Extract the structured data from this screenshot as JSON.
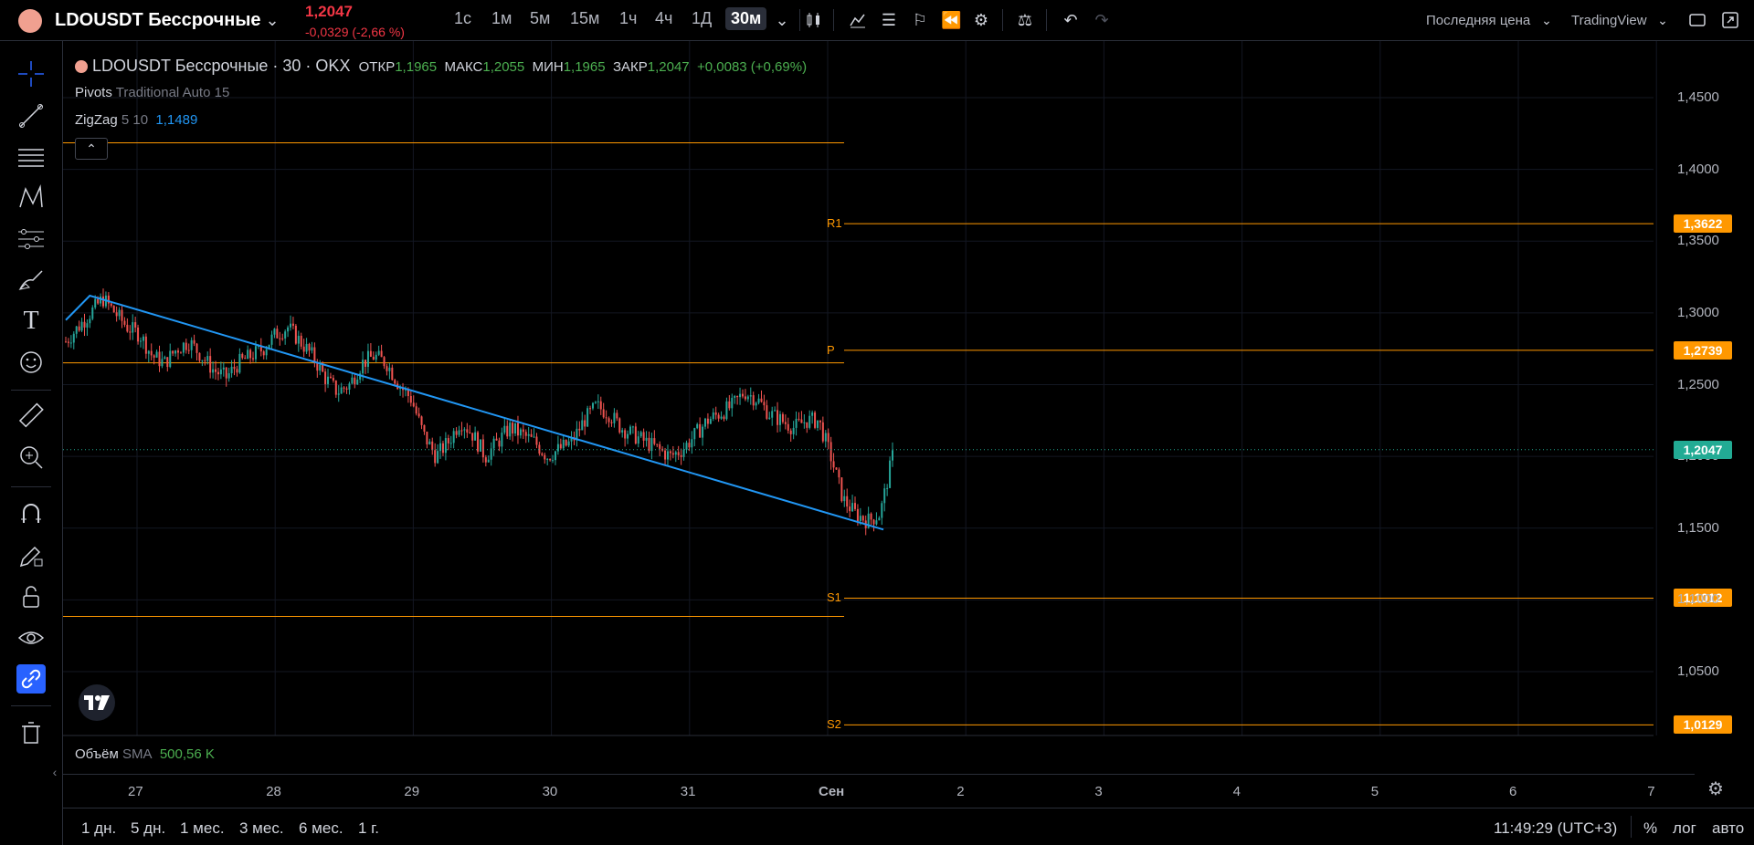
{
  "header": {
    "symbol": "LDOUSDT Бессрочные",
    "price": "1,2047",
    "change": "-0,0329 (-2,66 %)",
    "intervals": [
      "1с",
      "1м",
      "5м",
      "15м",
      "1ч",
      "4ч",
      "1Д",
      "30м"
    ],
    "price_type": "Последняя цена",
    "chart_provider": "TradingView"
  },
  "left_tools": [
    "crosshair-icon",
    "trendline-icon",
    "horizontal-lines-icon",
    "pattern-icon",
    "fib-icon",
    "brush-icon",
    "text-icon",
    "emoji-icon",
    "ruler-icon",
    "zoom-icon",
    "magnet-icon",
    "pencil-lock-icon",
    "lock-icon",
    "eye-icon",
    "link-icon",
    "trash-icon"
  ],
  "legend": {
    "title": "LDOUSDT Бессрочные · 30 · OKX",
    "open_label": "ОТКР",
    "open": "1,1965",
    "high_label": "МАКС",
    "high": "1,2055",
    "low_label": "МИН",
    "low": "1,1965",
    "close_label": "ЗАКР",
    "close": "1,2047",
    "change": "+0,0083 (+0,69%)",
    "pivots_name": "Pivots",
    "pivots_params": "Traditional Auto 15",
    "zigzag_name": "ZigZag",
    "zigzag_params": "5 10",
    "zigzag_value": "1,1489",
    "volume_name": "Объём",
    "volume_ma": "SMA",
    "volume_value": "500,56 K"
  },
  "chart_data": {
    "type": "candlestick",
    "ylim": [
      0.99,
      1.47
    ],
    "yticks": [
      "1,4500",
      "1,4000",
      "1,3500",
      "1,3000",
      "1,2500",
      "1,2000",
      "1,1500",
      "1,1000",
      "1,0500"
    ],
    "ytick_values": [
      1.45,
      1.4,
      1.35,
      1.3,
      1.25,
      1.2,
      1.15,
      1.1,
      1.05
    ],
    "x_labels": [
      "27",
      "28",
      "29",
      "30",
      "31",
      "Сен",
      "2",
      "3",
      "4",
      "5",
      "6",
      "7"
    ],
    "pivot_levels": [
      {
        "name": "R1",
        "value": "1,3622",
        "v": 1.3622
      },
      {
        "name": "P",
        "value": "1,2739",
        "v": 1.2739
      },
      {
        "name": "S1",
        "value": "1,1012",
        "v": 1.1012
      },
      {
        "name": "S2",
        "value": "1,0129",
        "v": 1.0129
      }
    ],
    "prev_period_levels": [
      1.4185,
      1.2652,
      1.0885
    ],
    "last_price": {
      "value": "1,2047",
      "v": 1.2047
    },
    "zigzag": [
      [
        0,
        1.295
      ],
      [
        0.45,
        1.312
      ],
      [
        15.3,
        1.149
      ]
    ],
    "close_path": [
      1.28,
      1.29,
      1.3,
      1.31,
      1.3,
      1.29,
      1.285,
      1.27,
      1.265,
      1.275,
      1.28,
      1.27,
      1.26,
      1.255,
      1.265,
      1.27,
      1.275,
      1.285,
      1.29,
      1.28,
      1.27,
      1.255,
      1.245,
      1.25,
      1.265,
      1.27,
      1.265,
      1.25,
      1.24,
      1.215,
      1.2,
      1.21,
      1.225,
      1.215,
      1.2,
      1.21,
      1.22,
      1.215,
      1.21,
      1.2,
      1.205,
      1.21,
      1.225,
      1.235,
      1.23,
      1.22,
      1.215,
      1.21,
      1.205,
      1.2,
      1.205,
      1.215,
      1.225,
      1.23,
      1.235,
      1.245,
      1.24,
      1.23,
      1.225,
      1.22,
      1.225,
      1.225,
      1.2,
      1.17,
      1.16,
      1.155,
      1.16,
      1.2
    ]
  },
  "time_axis_labels": [
    "27",
    "28",
    "29",
    "30",
    "31",
    "Сен",
    "2",
    "3",
    "4",
    "5",
    "6",
    "7"
  ],
  "bottom": {
    "ranges": [
      "1 дн.",
      "5 дн.",
      "1 мес.",
      "3 мес.",
      "6 мес.",
      "1 г."
    ],
    "clock": "11:49:29 (UTC+3)",
    "percent": "%",
    "log": "лог",
    "auto": "авто"
  },
  "colors": {
    "up": "#26a69a",
    "down": "#ef5350",
    "pivot": "#ff9800",
    "zigzag": "#2196f3",
    "last": "#22ab94"
  }
}
